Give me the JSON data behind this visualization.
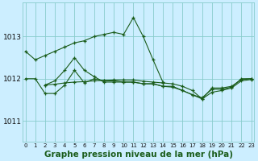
{
  "background_color": "#cceeff",
  "grid_color": "#88cccc",
  "line_color": "#1a5c1a",
  "xlabel": "Graphe pression niveau de la mer (hPa)",
  "xlabel_fontsize": 7.5,
  "yticks": [
    1011,
    1012,
    1013
  ],
  "xticks": [
    0,
    1,
    2,
    3,
    4,
    5,
    6,
    7,
    8,
    9,
    10,
    11,
    12,
    13,
    14,
    15,
    16,
    17,
    18,
    19,
    20,
    21,
    22,
    23
  ],
  "ylim": [
    1010.5,
    1013.8
  ],
  "xlim": [
    -0.3,
    23.3
  ],
  "series": [
    {
      "x": [
        0,
        1,
        2,
        3,
        4,
        5,
        6,
        7,
        8,
        9,
        10,
        11,
        12,
        13,
        14
      ],
      "y": [
        1012.65,
        1012.5,
        1012.55,
        1012.7,
        1012.8,
        1012.85,
        1012.9,
        1013.0,
        1013.05,
        1013.1,
        1013.05,
        1013.45,
        1013.0,
        1012.5,
        1011.95
      ]
    },
    {
      "x": [
        2,
        3,
        4,
        5,
        6,
        7,
        8,
        9,
        10,
        11,
        12,
        13,
        14,
        15,
        16,
        17,
        18,
        19,
        20,
        21,
        22,
        23
      ],
      "y": [
        1011.85,
        1011.87,
        1011.9,
        1011.92,
        1011.93,
        1011.95,
        1011.96,
        1011.97,
        1011.97,
        1011.97,
        1011.96,
        1011.95,
        1011.95,
        1011.94,
        1011.93,
        1011.92,
        1011.9,
        1011.88,
        1011.88,
        1011.9,
        1011.95,
        1011.98
      ]
    },
    {
      "x": [
        0,
        1,
        2,
        3,
        4,
        5,
        6,
        7,
        8,
        9,
        10,
        11,
        12,
        13,
        14,
        15,
        16,
        17,
        18,
        19,
        20,
        21,
        22,
        23
      ],
      "y": [
        1012.0,
        1012.0,
        1011.65,
        1011.65,
        1011.85,
        1012.2,
        1011.9,
        1012.0,
        1011.95,
        1011.95,
        1011.95,
        1011.95,
        1011.9,
        1011.9,
        1011.85,
        1011.85,
        1011.72,
        1011.62,
        1011.55,
        1011.75,
        1011.75,
        1011.8,
        1012.0,
        1012.0
      ]
    },
    {
      "x": [
        0,
        1,
        2,
        3,
        4,
        5,
        6,
        7,
        8,
        9,
        10,
        11,
        12,
        13,
        14,
        15,
        16,
        17,
        18,
        19,
        20,
        21,
        22,
        23
      ],
      "y": [
        1012.0,
        1012.0,
        1011.95,
        1011.95,
        1012.0,
        1012.05,
        1011.98,
        1012.0,
        1011.98,
        1011.97,
        1011.97,
        1011.97,
        1011.85,
        1011.85,
        1011.75,
        1011.75,
        1011.62,
        1011.55,
        1011.48,
        1011.72,
        1011.72,
        1011.78,
        1011.95,
        1011.97
      ]
    },
    {
      "x": [
        0,
        1,
        2,
        3,
        4,
        5,
        6,
        7,
        8,
        9,
        10,
        11,
        12,
        13,
        14,
        15,
        16,
        17,
        18,
        19,
        20,
        21,
        22,
        23
      ],
      "y": [
        1012.0,
        1012.0,
        1011.88,
        1011.88,
        1012.0,
        1012.1,
        1011.98,
        1012.0,
        1011.98,
        1011.97,
        1011.97,
        1011.97,
        1011.85,
        1011.85,
        1011.75,
        1011.72,
        1011.62,
        1011.55,
        1011.48,
        1011.72,
        1011.72,
        1011.78,
        1011.93,
        1011.97
      ]
    }
  ]
}
